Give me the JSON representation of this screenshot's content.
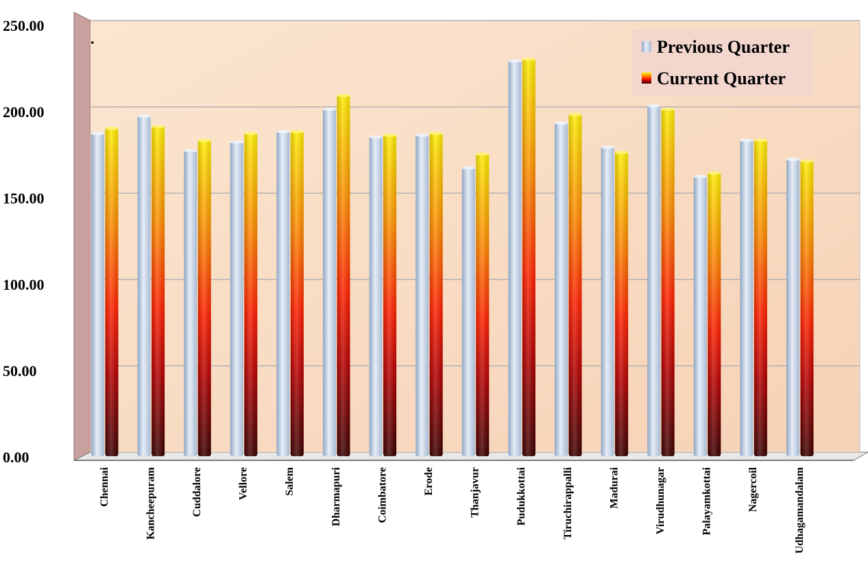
{
  "chart_data": {
    "type": "bar",
    "title": "",
    "xlabel": "",
    "ylabel": "",
    "ylim": [
      0,
      250
    ],
    "y_ticks": [
      "0.00",
      "50.00",
      "100.00",
      "150.00",
      "200.00",
      "250.00"
    ],
    "grid": true,
    "legend_position": "top-right",
    "categories": [
      "Chennai",
      "Kancheepuram",
      "Cuddalore",
      "Vellore",
      "Salem",
      "Dharmapuri",
      "Coimbatore",
      "Erode",
      "Thanjavur",
      "Pudukkottai",
      "Tiruchirappalli",
      "Madurai",
      "Virudhunagar",
      "Palayamkottai",
      "Nagercoil",
      "Udhagamandalam"
    ],
    "series": [
      {
        "name": "Previous Quarter",
        "values": [
          185,
          195,
          175,
          180,
          186,
          199,
          183,
          184,
          165,
          227,
          191,
          177,
          201,
          160,
          181,
          170
        ]
      },
      {
        "name": "Current Quarter",
        "values": [
          188,
          189,
          181,
          185,
          186,
          207,
          184,
          185,
          173,
          228,
          196,
          174,
          199,
          162,
          181,
          169
        ]
      }
    ],
    "annotations": [
      "."
    ]
  },
  "colors": {
    "previous": "#c3d3e8",
    "current_top": "#ffee00",
    "current_mid": "#ff2a00",
    "current_bottom": "#4a0000",
    "plot_bg_top": "#fbead8",
    "plot_bg_bottom": "#f3ceb0",
    "wall": "#c9a09e",
    "legend_bg": "#f3d7cf"
  }
}
